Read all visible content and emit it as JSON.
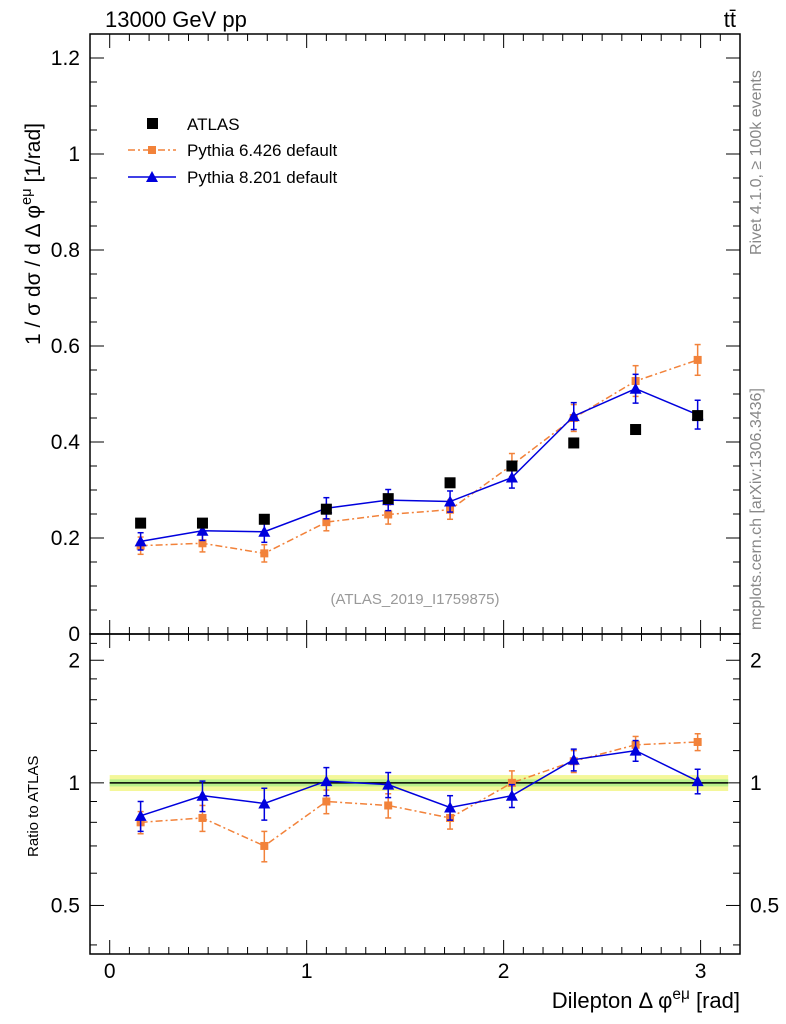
{
  "header": {
    "energy_label": "13000 GeV pp",
    "process_label": "tt̄"
  },
  "side_notes": {
    "rivet": "Rivet 4.1.0, ≥ 100k events",
    "mcplots": "mcplots.cern.ch [arXiv:1306.3436]"
  },
  "watermark": "(ATLAS_2019_I1759875)",
  "chart_data": [
    {
      "type": "scatter",
      "panel": "main",
      "title": "",
      "xlabel": "Dilepton Δ φ^eμ [rad]",
      "ylabel": "1 / σ dσ / d Δ φ^eμ [1/rad]",
      "xlim": [
        -0.1,
        3.2
      ],
      "ylim": [
        0,
        1.25
      ],
      "y_ticks": [
        0,
        0.2,
        0.4,
        0.6,
        0.8,
        1,
        1.2
      ],
      "y_tick_labels": [
        "0",
        "0.2",
        "0.4",
        "0.6",
        "0.8",
        "1",
        "1.2"
      ],
      "x_ticks": [
        0,
        1,
        2,
        3
      ],
      "x_tick_labels": [
        "0",
        "1",
        "2",
        "3"
      ],
      "legend_position": "top-left",
      "x": [
        0.157,
        0.471,
        0.785,
        1.1,
        1.414,
        1.728,
        2.042,
        2.356,
        2.67,
        2.985
      ],
      "series": [
        {
          "name": "ATLAS",
          "color": "#000000",
          "marker": "square",
          "values": [
            0.231,
            0.231,
            0.239,
            0.26,
            0.282,
            0.315,
            0.35,
            0.398,
            0.426,
            0.455
          ]
        },
        {
          "name": "Pythia 6.426 default",
          "color": "#f2823a",
          "marker": "square-small",
          "values": [
            0.184,
            0.189,
            0.168,
            0.233,
            0.249,
            0.259,
            0.352,
            0.45,
            0.527,
            0.571
          ],
          "errors": [
            0.018,
            0.018,
            0.018,
            0.018,
            0.02,
            0.02,
            0.024,
            0.028,
            0.032,
            0.032
          ]
        },
        {
          "name": "Pythia 8.201 default",
          "color": "#0000dd",
          "marker": "triangle",
          "values": [
            0.193,
            0.215,
            0.213,
            0.262,
            0.279,
            0.276,
            0.326,
            0.454,
            0.511,
            0.457
          ],
          "errors": [
            0.018,
            0.02,
            0.022,
            0.022,
            0.022,
            0.022,
            0.022,
            0.028,
            0.03,
            0.03
          ]
        }
      ]
    },
    {
      "type": "scatter",
      "panel": "ratio",
      "title": "",
      "xlabel": "Dilepton Δ φ^eμ [rad]",
      "ylabel": "Ratio to ATLAS",
      "xlim": [
        -0.1,
        3.2
      ],
      "ylim": [
        0.38,
        2.32
      ],
      "y_ticks": [
        0.5,
        1,
        2
      ],
      "y_tick_labels": [
        "0.5",
        "1",
        "2"
      ],
      "x": [
        0.157,
        0.471,
        0.785,
        1.1,
        1.414,
        1.728,
        2.042,
        2.356,
        2.67,
        2.985
      ],
      "series": [
        {
          "name": "Pythia 6.426 default",
          "color": "#f2823a",
          "marker": "square-small",
          "values": [
            0.8,
            0.82,
            0.7,
            0.9,
            0.88,
            0.82,
            1.0,
            1.13,
            1.24,
            1.26
          ],
          "errors": [
            0.05,
            0.06,
            0.06,
            0.06,
            0.06,
            0.05,
            0.07,
            0.07,
            0.06,
            0.06
          ]
        },
        {
          "name": "Pythia 8.201 default",
          "color": "#0000dd",
          "marker": "triangle",
          "values": [
            0.83,
            0.93,
            0.89,
            1.01,
            0.99,
            0.87,
            0.93,
            1.14,
            1.2,
            1.01
          ],
          "errors": [
            0.07,
            0.08,
            0.08,
            0.08,
            0.07,
            0.06,
            0.06,
            0.07,
            0.07,
            0.07
          ]
        }
      ]
    }
  ]
}
